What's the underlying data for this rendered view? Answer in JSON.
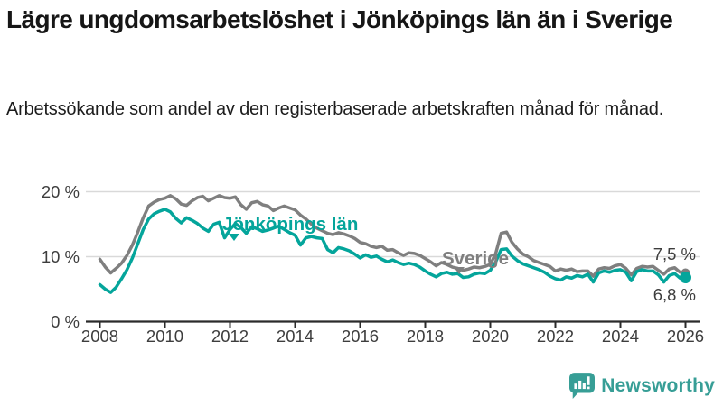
{
  "header": {
    "title": "Lägre ungdomsarbetslöshet i Jönköpings län än i Sverige",
    "subtitle": "Arbetssökande som andel av den registerbaserade arbetskraften månad för månad."
  },
  "chart_data": {
    "type": "line",
    "x_start": 2008,
    "points_per_year": 6,
    "x_ticks": [
      2008,
      2010,
      2012,
      2014,
      2016,
      2018,
      2020,
      2022,
      2024,
      2026
    ],
    "y_ticks": [
      {
        "value": 0,
        "label": "0 %"
      },
      {
        "value": 10,
        "label": "10 %"
      },
      {
        "value": 20,
        "label": "20 %"
      }
    ],
    "ylim": [
      0,
      22
    ],
    "grid": true,
    "unit": "%",
    "series": [
      {
        "id": "sverige",
        "name": "Sverige",
        "color": "#7f7f7f",
        "end_label": "7,5 %",
        "end_value": 7.5,
        "values": [
          9.6,
          8.4,
          7.5,
          8.2,
          9.0,
          10.2,
          11.8,
          13.8,
          16.0,
          17.8,
          18.4,
          18.8,
          19.0,
          19.4,
          18.9,
          18.1,
          17.9,
          18.6,
          19.1,
          19.3,
          18.6,
          19.0,
          19.4,
          19.1,
          19.0,
          19.2,
          18.0,
          17.3,
          18.3,
          18.5,
          18.0,
          17.8,
          17.1,
          17.5,
          17.8,
          17.5,
          17.2,
          16.4,
          15.8,
          15.0,
          14.4,
          14.0,
          13.6,
          13.4,
          13.7,
          13.5,
          13.2,
          12.8,
          12.2,
          12.0,
          11.6,
          11.4,
          11.6,
          11.0,
          11.1,
          10.6,
          10.2,
          10.6,
          10.5,
          10.2,
          9.7,
          9.2,
          8.6,
          9.1,
          8.8,
          8.4,
          8.2,
          7.9,
          8.1,
          8.4,
          8.3,
          8.5,
          8.8,
          10.5,
          13.6,
          13.8,
          12.2,
          11.2,
          10.4,
          10.0,
          9.4,
          9.1,
          8.8,
          8.5,
          7.8,
          8.1,
          7.9,
          8.1,
          7.7,
          7.8,
          7.8,
          7.0,
          8.1,
          8.3,
          8.2,
          8.6,
          8.8,
          8.2,
          7.2,
          8.2,
          8.5,
          8.4,
          8.5,
          7.9,
          7.3,
          8.1,
          8.3,
          7.6,
          7.5
        ]
      },
      {
        "id": "jonkopings-lan",
        "name": "Jönköpings län",
        "color": "#04a59b",
        "end_label": "6,8 %",
        "end_value": 6.8,
        "values": [
          5.7,
          5.0,
          4.5,
          5.3,
          6.6,
          8.0,
          9.8,
          12.0,
          14.2,
          15.8,
          16.6,
          17.0,
          17.3,
          16.9,
          15.9,
          15.2,
          16.0,
          15.6,
          15.1,
          14.4,
          13.9,
          15.0,
          15.3,
          12.9,
          14.2,
          15.1,
          14.5,
          13.6,
          14.6,
          14.3,
          13.9,
          14.1,
          14.4,
          14.7,
          14.2,
          13.7,
          13.3,
          11.8,
          12.9,
          13.1,
          12.9,
          12.8,
          11.1,
          10.6,
          11.4,
          11.2,
          10.9,
          10.4,
          9.8,
          10.3,
          9.9,
          10.1,
          9.6,
          9.2,
          9.5,
          9.1,
          8.8,
          9.0,
          8.8,
          8.4,
          7.8,
          7.3,
          6.9,
          7.4,
          7.6,
          7.3,
          7.4,
          6.8,
          6.9,
          7.3,
          7.5,
          7.4,
          7.9,
          9.2,
          11.1,
          11.2,
          10.1,
          9.4,
          8.9,
          8.6,
          8.3,
          8.0,
          7.6,
          7.0,
          6.6,
          6.4,
          6.9,
          6.7,
          7.1,
          6.9,
          7.3,
          6.1,
          7.5,
          7.8,
          7.6,
          7.9,
          8.0,
          7.6,
          6.3,
          7.7,
          8.0,
          7.8,
          7.8,
          7.2,
          6.1,
          7.1,
          7.4,
          6.7,
          6.8
        ]
      }
    ]
  },
  "footer": {
    "brand": "Newsworthy"
  },
  "colors": {
    "grid": "#d9d9d9",
    "axis": "#2b2b2b",
    "axis_text": "#3d3d3d",
    "logo": "#379e96",
    "background": "#ffffff"
  }
}
